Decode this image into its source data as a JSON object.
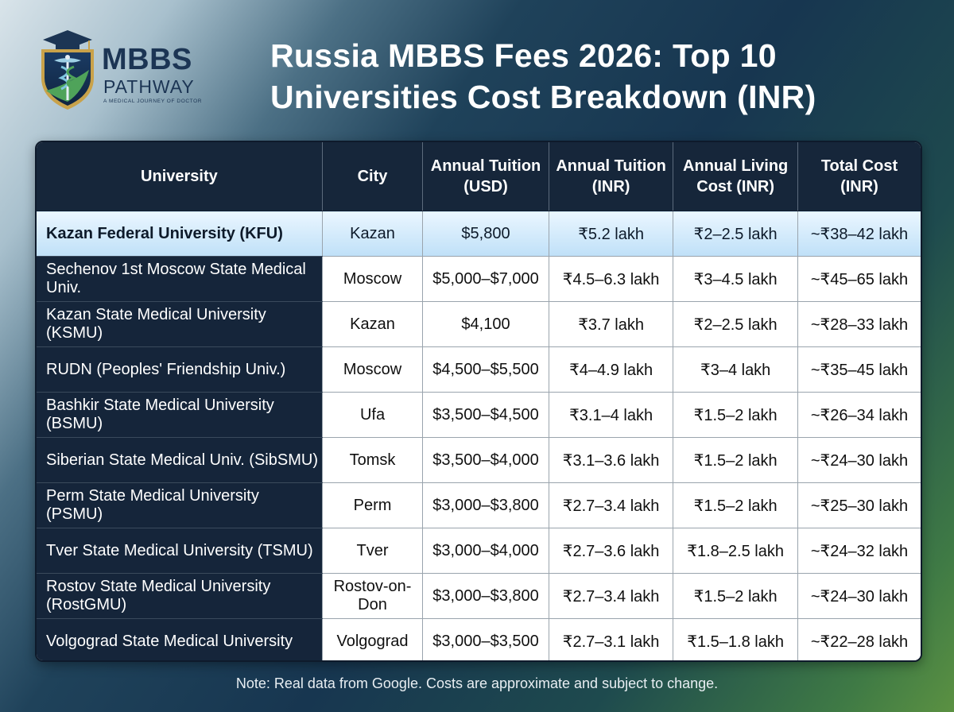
{
  "logo": {
    "brand_main": "MBBS",
    "brand_sub": "PATHWAY",
    "tagline": "A MEDICAL JOURNEY OF DOCTOR"
  },
  "title": "Russia MBBS Fees 2026: Top 10 Universities Cost Breakdown (INR)",
  "table": {
    "headers": [
      "University",
      "City",
      "Annual Tuition (USD)",
      "Annual Tuition (INR)",
      "Annual Living Cost (INR)",
      "Total Cost (INR)"
    ],
    "rows": [
      [
        "Kazan Federal University (KFU)",
        "Kazan",
        "$5,800",
        "₹5.2 lakh",
        "₹2–2.5 lakh",
        "~₹38–42 lakh"
      ],
      [
        "Sechenov 1st Moscow State Medical Univ.",
        "Moscow",
        "$5,000–$7,000",
        "₹4.5–6.3 lakh",
        "₹3–4.5 lakh",
        "~₹45–65 lakh"
      ],
      [
        "Kazan State Medical University (KSMU)",
        "Kazan",
        "$4,100",
        "₹3.7 lakh",
        "₹2–2.5 lakh",
        "~₹28–33 lakh"
      ],
      [
        "RUDN (Peoples' Friendship Univ.)",
        "Moscow",
        "$4,500–$5,500",
        "₹4–4.9 lakh",
        "₹3–4 lakh",
        "~₹35–45 lakh"
      ],
      [
        "Bashkir State Medical University (BSMU)",
        "Ufa",
        "$3,500–$4,500",
        "₹3.1–4 lakh",
        "₹1.5–2 lakh",
        "~₹26–34 lakh"
      ],
      [
        "Siberian State Medical Univ. (SibSMU)",
        "Tomsk",
        "$3,500–$4,000",
        "₹3.1–3.6 lakh",
        "₹1.5–2 lakh",
        "~₹24–30 lakh"
      ],
      [
        "Perm State Medical University (PSMU)",
        "Perm",
        "$3,000–$3,800",
        "₹2.7–3.4 lakh",
        "₹1.5–2 lakh",
        "~₹25–30 lakh"
      ],
      [
        "Tver State Medical University (TSMU)",
        "Tver",
        "$3,000–$4,000",
        "₹2.7–3.6 lakh",
        "₹1.8–2.5 lakh",
        "~₹24–32 lakh"
      ],
      [
        "Rostov State Medical University (RostGMU)",
        "Rostov-on-Don",
        "$3,000–$3,800",
        "₹2.7–3.4 lakh",
        "₹1.5–2 lakh",
        "~₹24–30 lakh"
      ],
      [
        "Volgograd State Medical University",
        "Volgograd",
        "$3,000–$3,500",
        "₹2.7–3.1 lakh",
        "₹1.5–1.8 lakh",
        "~₹22–28 lakh"
      ]
    ]
  },
  "note": "Note: Real data from Google. Costs are approximate and subject to change.",
  "colors": {
    "header_bg": "#16263a",
    "highlight_row": "#bfe0f8",
    "brand_navy": "#1c3554",
    "shield_gold": "#c9a24a",
    "shield_green": "#4fa35a"
  }
}
